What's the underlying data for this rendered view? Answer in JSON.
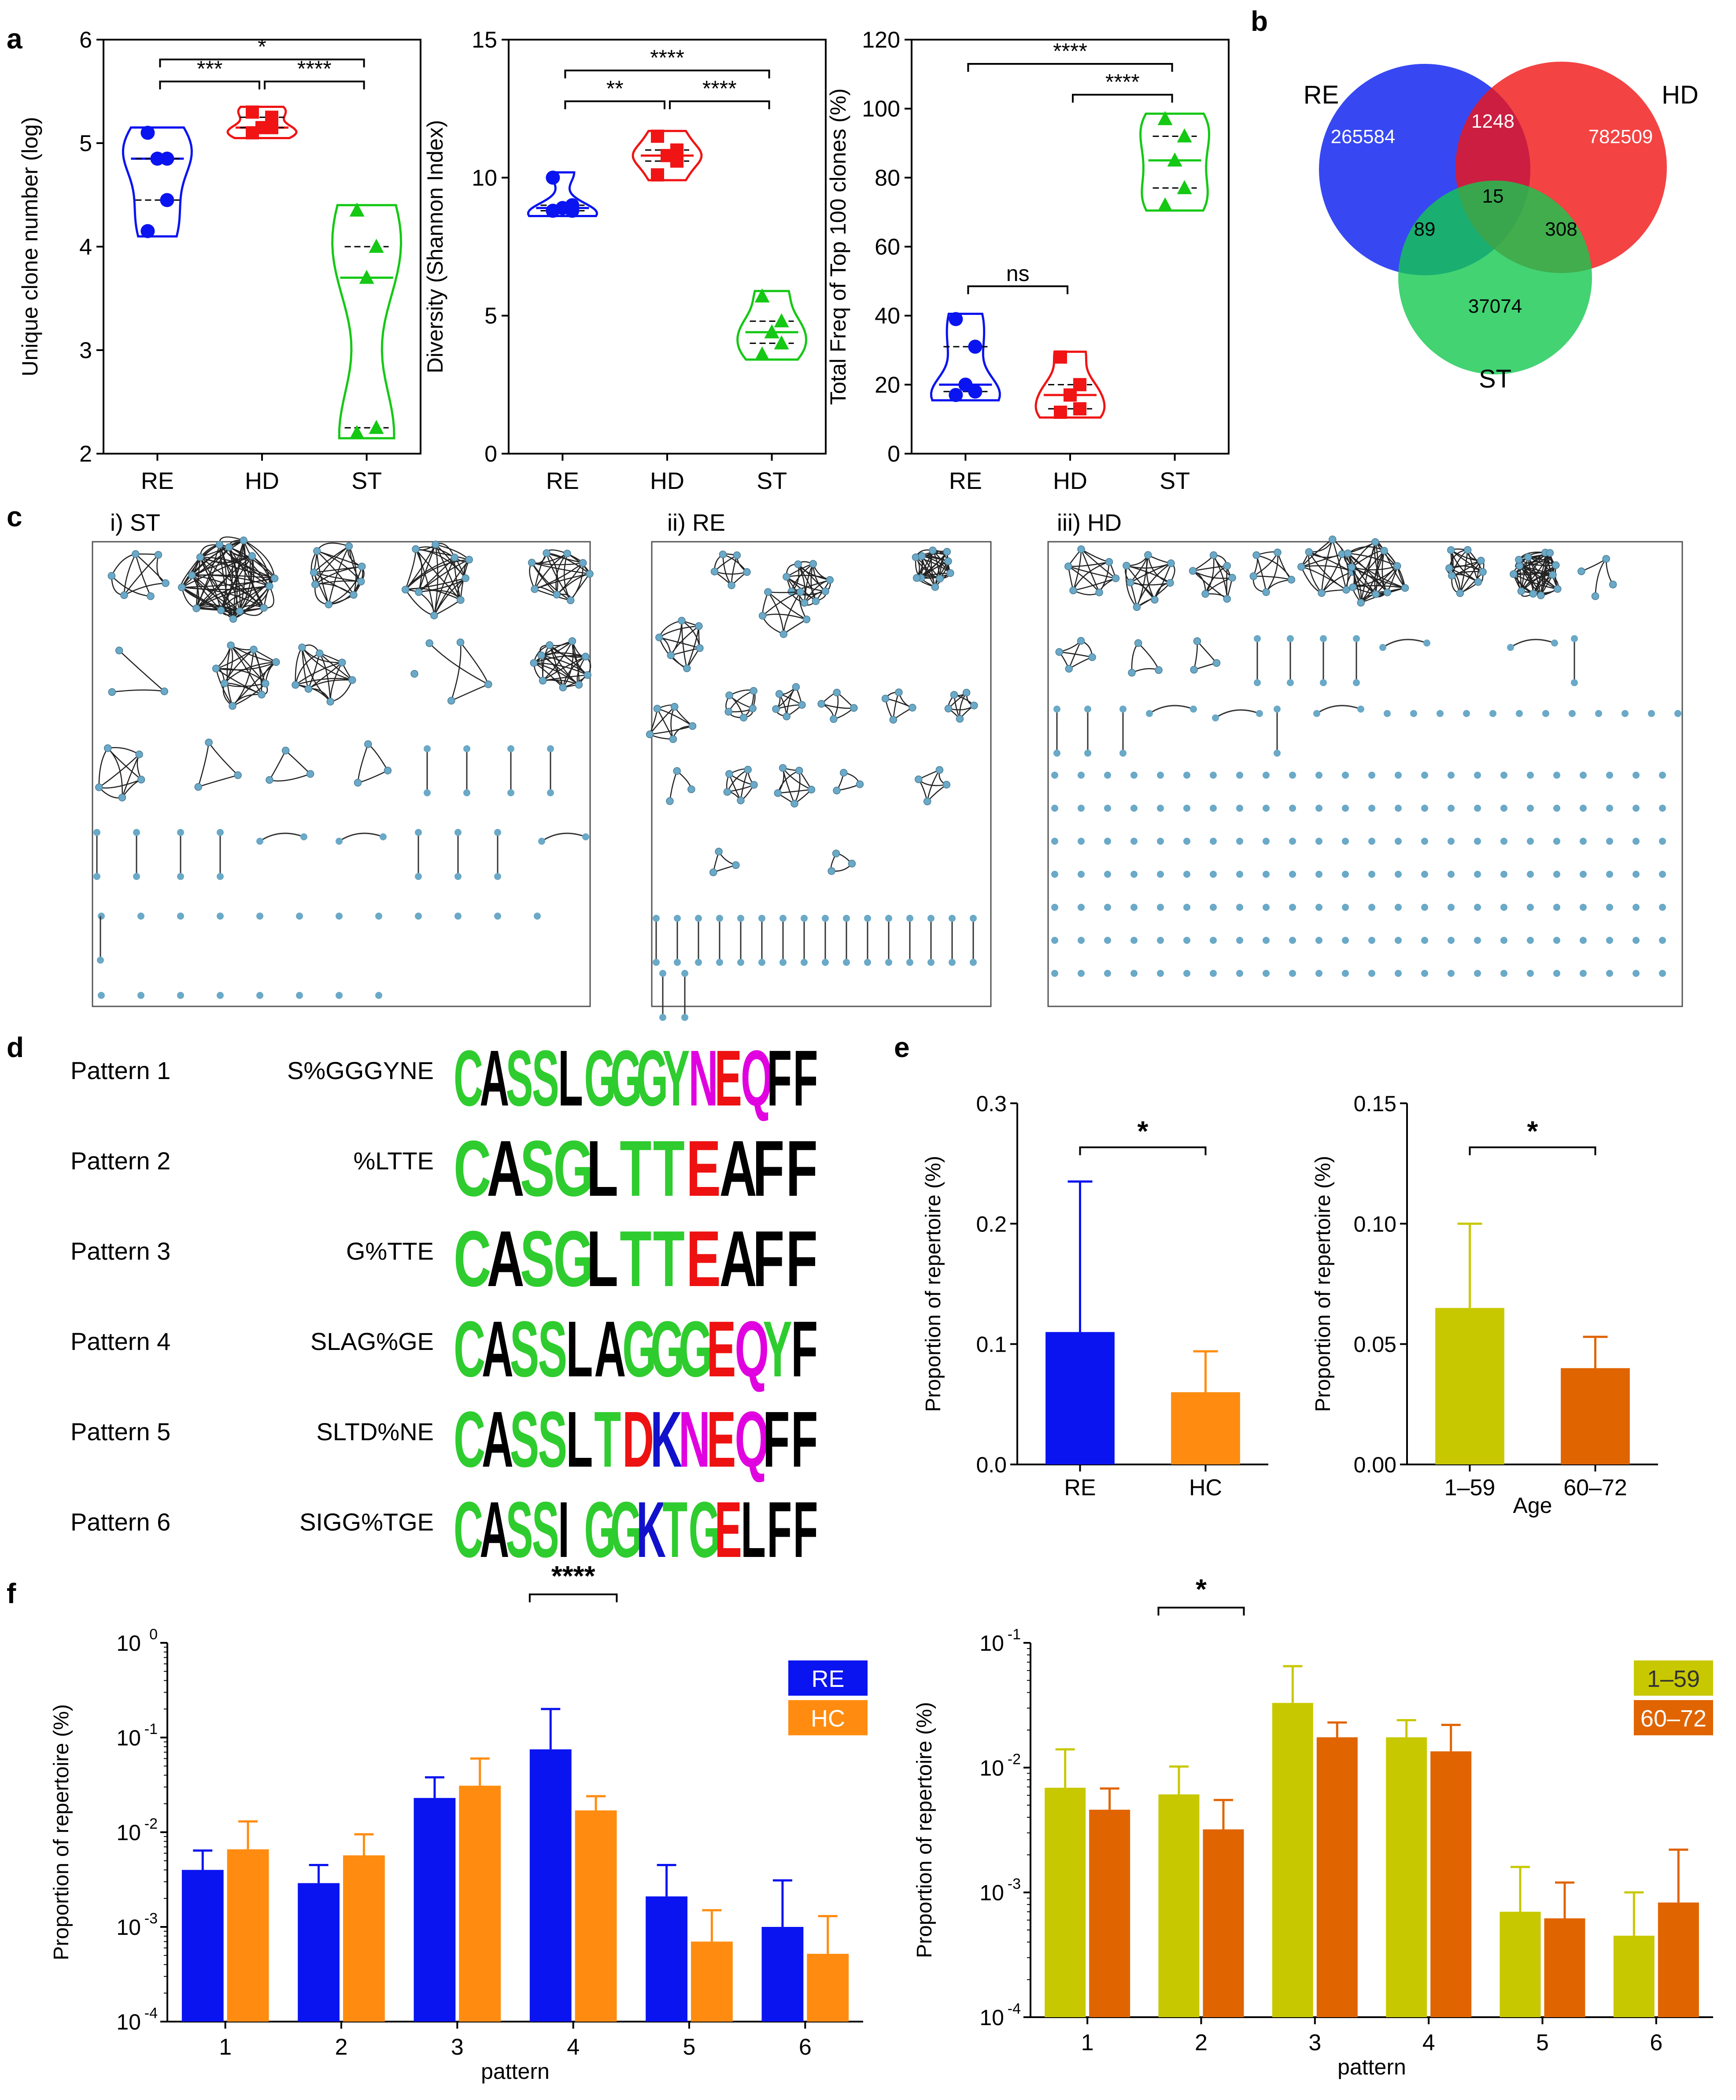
{
  "colors": {
    "RE": "#0a14f0",
    "HD": "#f01414",
    "ST": "#14c814",
    "HC": "#ff8c10",
    "age1": "#c8c800",
    "age2": "#e06400",
    "node": "#6aa9c7",
    "green_logo": "#2ecc2e",
    "magenta": "#e000e0",
    "red_logo": "#ee1111",
    "blue_logo": "#1111cc"
  },
  "panel_labels": {
    "a": "a",
    "b": "b",
    "c": "c",
    "d": "d",
    "e": "e",
    "f": "f"
  },
  "panel_a": [
    {
      "ylabel": "Unique clone number (log)",
      "yticks": [
        "2",
        "3",
        "4",
        "5",
        "6"
      ],
      "ylim": [
        2,
        6
      ],
      "categories": [
        "RE",
        "HD",
        "ST"
      ],
      "points": {
        "RE": [
          5.1,
          4.85,
          4.85,
          4.45,
          4.15
        ],
        "HD": [
          5.3,
          5.25,
          5.15,
          5.15,
          5.1
        ],
        "ST": [
          4.35,
          4.0,
          3.7,
          2.25,
          2.2
        ]
      },
      "sig": [
        {
          "text": "*",
          "from": 0,
          "to": 2,
          "level": 0
        },
        {
          "text": "***",
          "from": 0,
          "to": 1,
          "level": 1
        },
        {
          "text": "****",
          "from": 1,
          "to": 2,
          "level": 1
        }
      ]
    },
    {
      "ylabel": "Diversity (Shannon Index)",
      "yticks": [
        "0",
        "5",
        "10",
        "15"
      ],
      "ylim": [
        0,
        15
      ],
      "categories": [
        "RE",
        "HD",
        "ST"
      ],
      "points": {
        "RE": [
          10.0,
          9.0,
          8.9,
          8.8,
          8.8
        ],
        "HD": [
          11.5,
          11.0,
          10.8,
          10.6,
          10.1
        ],
        "ST": [
          5.7,
          4.8,
          4.4,
          4.0,
          3.6
        ]
      },
      "sig": [
        {
          "text": "****",
          "from": 0,
          "to": 2,
          "level": 0
        },
        {
          "text": "**",
          "from": 0,
          "to": 1,
          "level": 1
        },
        {
          "text": "****",
          "from": 1,
          "to": 2,
          "level": 1
        }
      ]
    },
    {
      "ylabel": "Total Freq of Top 100 clones (%)",
      "yticks": [
        "0",
        "20",
        "40",
        "60",
        "80",
        "100",
        "120"
      ],
      "ylim": [
        0,
        120
      ],
      "categories": [
        "RE",
        "HD",
        "ST"
      ],
      "points": {
        "RE": [
          39,
          31,
          20,
          18,
          17
        ],
        "HD": [
          28,
          20,
          17,
          13,
          12
        ],
        "ST": [
          97,
          92,
          85,
          77,
          72
        ]
      },
      "sig": [
        {
          "text": "****",
          "from": 0,
          "to": 2,
          "level": 0
        },
        {
          "text": "****",
          "from": 1,
          "to": 2,
          "level": 1
        },
        {
          "text": "ns",
          "from": 0,
          "to": 1,
          "level": 2
        }
      ]
    }
  ],
  "panel_b": {
    "labels": [
      "RE",
      "HD",
      "ST"
    ],
    "values": {
      "re_only": "265584",
      "hd_only": "782509",
      "st_only": "37074",
      "re_hd": "1248",
      "re_st": "89",
      "hd_st": "308",
      "all": "15"
    }
  },
  "panel_c": {
    "titles": [
      "i) ST",
      "ii) RE",
      "iii) HD"
    ]
  },
  "panel_d": {
    "patterns": [
      {
        "name": "Pattern 1",
        "motif": "S%GGGYNE",
        "seq": "CASSLGGGYNEQFF"
      },
      {
        "name": "Pattern 2",
        "motif": "%LTTE",
        "seq": "CASGLTTEAFF"
      },
      {
        "name": "Pattern 3",
        "motif": "G%TTE",
        "seq": "CASGLTTEAFF"
      },
      {
        "name": "Pattern 4",
        "motif": "SLAG%GE",
        "seq": "CASSLAGGGEQYF"
      },
      {
        "name": "Pattern 5",
        "motif": "SLTD%NE",
        "seq": "CASSLTDKNEQFF"
      },
      {
        "name": "Pattern 6",
        "motif": "SIGG%TGE",
        "seq": "CASSIGGKTGELFF"
      }
    ]
  },
  "chart_data": [
    {
      "type": "bar",
      "id": "e1",
      "categories": [
        "RE",
        "HC"
      ],
      "values": [
        0.11,
        0.06
      ],
      "errors": [
        0.125,
        0.034
      ],
      "ylabel": "Proportion of repertoire (%)",
      "ylim": [
        0,
        0.3
      ],
      "yticks": [
        "0.0",
        "0.1",
        "0.2",
        "0.3"
      ],
      "xlabel": "",
      "significance": "*"
    },
    {
      "type": "bar",
      "id": "e2",
      "categories": [
        "1–59",
        "60–72"
      ],
      "values": [
        0.065,
        0.04
      ],
      "errors": [
        0.035,
        0.013
      ],
      "ylabel": "Proportion of repertoire (%)",
      "ylim": [
        0,
        0.15
      ],
      "yticks": [
        "0.00",
        "0.05",
        "0.10",
        "0.15"
      ],
      "xlabel": "Age",
      "significance": "*"
    },
    {
      "type": "bar",
      "id": "f1",
      "categories": [
        "1",
        "2",
        "3",
        "4",
        "5",
        "6"
      ],
      "xlabel": "pattern",
      "ylabel": "Proportion of repertoire (%)",
      "yscale": "log",
      "ylim_exp": [
        -4,
        0
      ],
      "yticks": [
        {
          "base": "10",
          "exp": "0"
        },
        {
          "base": "10",
          "exp": "-1"
        },
        {
          "base": "10",
          "exp": "-2"
        },
        {
          "base": "10",
          "exp": "-3"
        },
        {
          "base": "10",
          "exp": "-4"
        }
      ],
      "series": [
        {
          "name": "RE",
          "values": [
            0.004,
            0.0029,
            0.023,
            0.075,
            0.0021,
            0.001
          ],
          "err_top": [
            0.0064,
            0.0045,
            0.038,
            0.2,
            0.0045,
            0.0031
          ]
        },
        {
          "name": "HC",
          "values": [
            0.0066,
            0.0057,
            0.031,
            0.017,
            0.0007,
            0.00052
          ],
          "err_top": [
            0.013,
            0.0095,
            0.06,
            0.024,
            0.0015,
            0.0013
          ]
        }
      ],
      "significance": {
        "text": "****",
        "category": 3
      }
    },
    {
      "type": "bar",
      "id": "f2",
      "categories": [
        "1",
        "2",
        "3",
        "4",
        "5",
        "6"
      ],
      "xlabel": "pattern",
      "ylabel": "Proportion of repertoire (%)",
      "yscale": "log",
      "ylim_exp": [
        -4,
        -1
      ],
      "yticks": [
        {
          "base": "10",
          "exp": "-1"
        },
        {
          "base": "10",
          "exp": "-2"
        },
        {
          "base": "10",
          "exp": "-3"
        },
        {
          "base": "10",
          "exp": "-4"
        }
      ],
      "series": [
        {
          "name": "1–59",
          "values": [
            0.0069,
            0.0061,
            0.033,
            0.0175,
            0.0007,
            0.00045
          ],
          "err_top": [
            0.014,
            0.0102,
            0.065,
            0.024,
            0.0016,
            0.001
          ]
        },
        {
          "name": "60–72",
          "values": [
            0.0046,
            0.0032,
            0.0175,
            0.0135,
            0.00062,
            0.00083
          ],
          "err_top": [
            0.0068,
            0.0055,
            0.023,
            0.022,
            0.0012,
            0.0022
          ]
        }
      ],
      "significance": {
        "text": "*",
        "category": 1
      }
    }
  ]
}
